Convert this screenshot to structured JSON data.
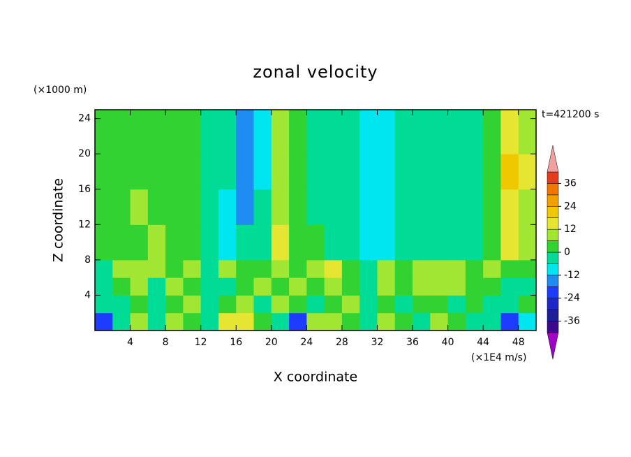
{
  "chart_data": {
    "type": "heatmap",
    "title": "zonal velocity",
    "y_unit_label": "(×1000 m)",
    "time_label": "t=421200 s",
    "value_unit_label": "(×1E4 m/s)",
    "x_label": "X coordinate",
    "y_label": "Z coordinate",
    "xlim": [
      0,
      50
    ],
    "ylim": [
      0,
      25
    ],
    "xticks": [
      4,
      8,
      12,
      16,
      20,
      24,
      28,
      32,
      36,
      40,
      44,
      48
    ],
    "yticks": [
      4,
      8,
      12,
      16,
      20,
      24
    ],
    "x_edges": [
      0,
      2,
      4,
      6,
      8,
      10,
      12,
      14,
      16,
      18,
      20,
      22,
      24,
      26,
      28,
      30,
      32,
      34,
      36,
      38,
      40,
      42,
      44,
      46,
      48,
      50
    ],
    "y_edges": [
      0,
      2,
      4,
      6,
      8,
      12,
      16,
      20,
      25
    ],
    "values": [
      [
        -20,
        -4,
        8,
        -2,
        10,
        4,
        -4,
        14,
        12,
        4,
        -4,
        -20,
        8,
        10,
        4,
        -6,
        8,
        4,
        -4,
        10,
        2,
        -4,
        -6,
        -24,
        -8
      ],
      [
        -6,
        -2,
        4,
        -4,
        2,
        6,
        -2,
        4,
        8,
        -2,
        6,
        2,
        -2,
        4,
        6,
        -4,
        2,
        -6,
        4,
        2,
        -2,
        4,
        -6,
        -4,
        2
      ],
      [
        -4,
        2,
        8,
        -4,
        6,
        2,
        -6,
        -2,
        4,
        6,
        2,
        10,
        4,
        8,
        2,
        -6,
        10,
        4,
        8,
        10,
        6,
        4,
        2,
        -2,
        -4
      ],
      [
        -3,
        8,
        6,
        10,
        4,
        8,
        -4,
        6,
        2,
        4,
        10,
        4,
        6,
        12,
        4,
        -4,
        8,
        2,
        10,
        8,
        6,
        4,
        8,
        2,
        4
      ],
      [
        2,
        4,
        2,
        8,
        2,
        4,
        -4,
        -8,
        -6,
        -4,
        12,
        4,
        2,
        -2,
        -4,
        -8,
        -8,
        -4,
        -6,
        -4,
        -2,
        -4,
        4,
        14,
        8
      ],
      [
        4,
        2,
        6,
        2,
        4,
        2,
        -4,
        -8,
        -14,
        -6,
        10,
        2,
        -2,
        -3,
        -4,
        -8,
        -10,
        -6,
        -4,
        -3,
        -3,
        -3,
        4,
        16,
        10
      ],
      [
        5,
        2,
        4,
        2,
        3,
        2,
        -3,
        -6,
        -16,
        -7,
        10,
        3,
        -2,
        -3,
        -5,
        -8,
        -9,
        -6,
        -4,
        -3,
        -3,
        -3,
        4,
        18,
        12
      ],
      [
        5,
        3,
        2,
        1,
        3,
        2,
        -3,
        -5,
        -14,
        -7,
        8,
        2,
        -3,
        -3,
        -5,
        -8,
        -8,
        -6,
        -4,
        -4,
        -3,
        -3,
        3,
        14,
        10
      ]
    ],
    "colorbar": {
      "levels": [
        -42,
        -36,
        -30,
        -24,
        -18,
        -12,
        -6,
        0,
        6,
        12,
        18,
        24,
        30,
        36,
        42
      ],
      "colors": [
        "#3c0a8c",
        "#1e1e96",
        "#1e28c8",
        "#1e3cff",
        "#1e8cf0",
        "#00e6f0",
        "#00dc96",
        "#32d232",
        "#a0e632",
        "#e6e632",
        "#f0c800",
        "#f0a000",
        "#f07800",
        "#e63c1e"
      ],
      "under_color": "#a000c8",
      "over_color": "#f0a0a0",
      "ticks": [
        -36,
        -24,
        -12,
        0,
        12,
        24,
        36
      ]
    }
  }
}
